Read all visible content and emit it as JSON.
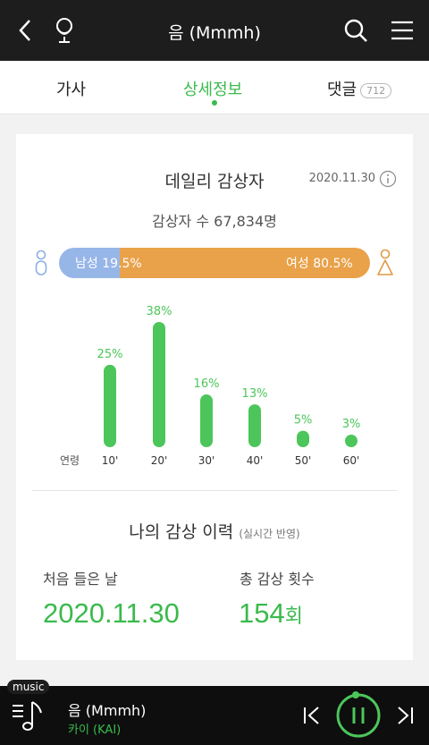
{
  "header": {
    "title": "음 (Mmmh)"
  },
  "tabs": [
    {
      "label": "가사"
    },
    {
      "label": "상세정보"
    },
    {
      "label": "댓글",
      "badge": "712"
    }
  ],
  "daily": {
    "title": "데일리 감상자",
    "date": "2020.11.30",
    "listeners": "감상자 수 67,834명",
    "male_label": "남성 19.5%",
    "female_label": "여성 80.5%",
    "male_fraction": 0.195
  },
  "chart_data": {
    "type": "bar",
    "xlabel": "연령",
    "categories": [
      "10'",
      "20'",
      "30'",
      "40'",
      "50'",
      "60'"
    ],
    "values": [
      25,
      38,
      16,
      13,
      5,
      3
    ],
    "value_labels": [
      "25%",
      "38%",
      "16%",
      "13%",
      "5%",
      "3%"
    ],
    "color": "#4cc65a"
  },
  "history": {
    "title": "나의 감상 이력",
    "subtitle": "(실시간 반영)",
    "first_label": "처음 들은 날",
    "first_value": "2020.11.30",
    "count_label": "총 감상 횟수",
    "count_value": "154",
    "count_unit": "회"
  },
  "player": {
    "tag": "music",
    "song": "음 (Mmmh)",
    "artist": "카이 (KAI)"
  }
}
